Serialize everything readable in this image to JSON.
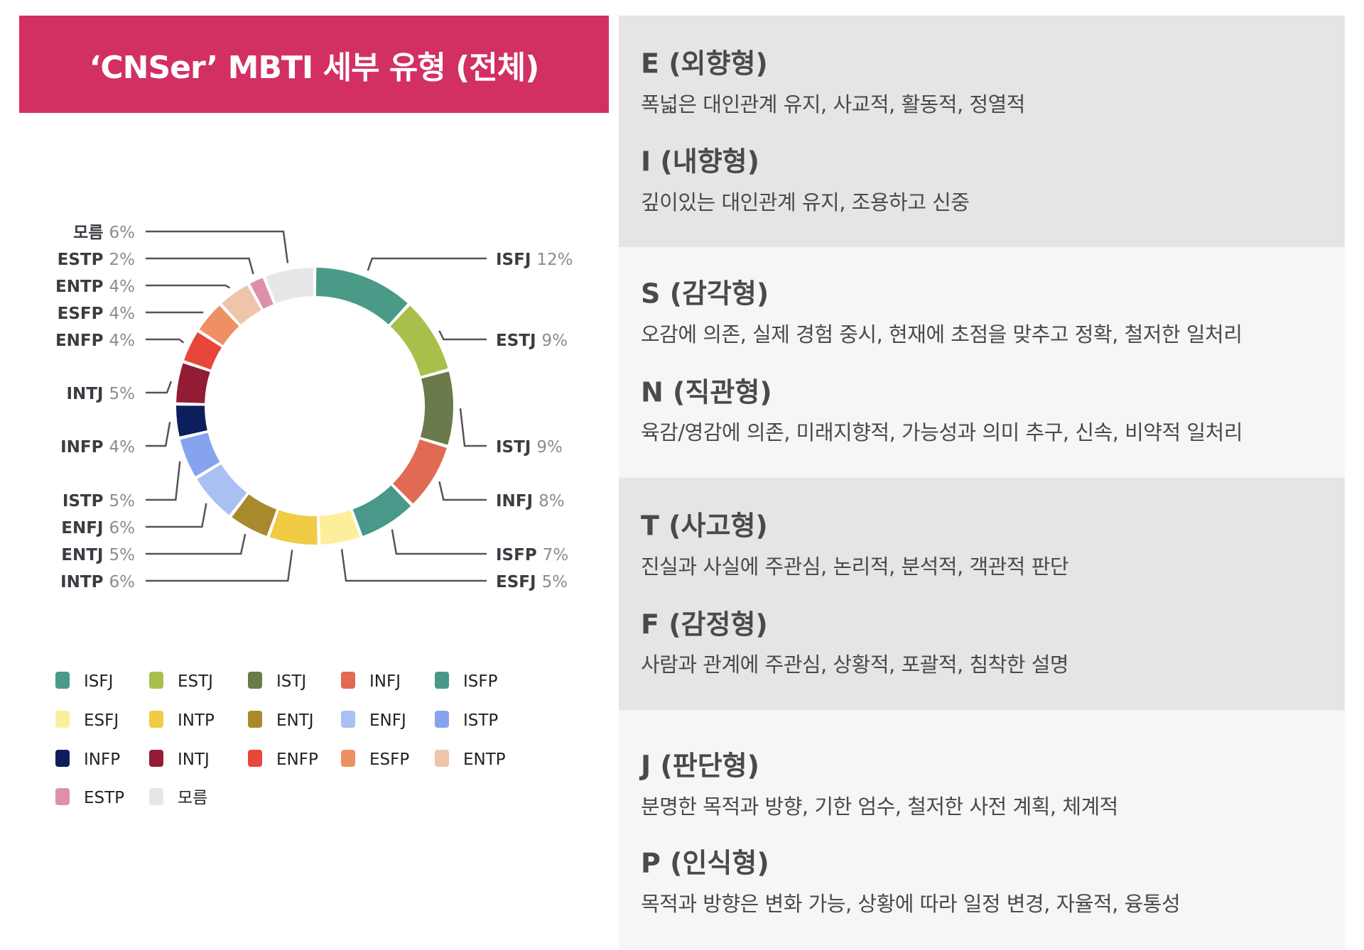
{
  "title": "‘CNSer’ MBTI 세부 유형 (전체)",
  "chart_data": {
    "type": "pie",
    "variant": "donut",
    "unit": "%",
    "legend_placement": "bottom",
    "slices": [
      {
        "label": "ISFJ",
        "value": 12,
        "color": "#4a9a88"
      },
      {
        "label": "ESTJ",
        "value": 9,
        "color": "#a8c04a"
      },
      {
        "label": "ISTJ",
        "value": 9,
        "color": "#6b7a4a"
      },
      {
        "label": "INFJ",
        "value": 8,
        "color": "#e06a52"
      },
      {
        "label": "ISFP",
        "value": 7,
        "color": "#48998a"
      },
      {
        "label": "ESFJ",
        "value": 5,
        "color": "#fbef9c"
      },
      {
        "label": "INTP",
        "value": 6,
        "color": "#efcc44"
      },
      {
        "label": "ENTJ",
        "value": 5,
        "color": "#a88a2c"
      },
      {
        "label": "ENFJ",
        "value": 6,
        "color": "#a8c0f2"
      },
      {
        "label": "ISTP",
        "value": 5,
        "color": "#86a4ee"
      },
      {
        "label": "INFP",
        "value": 4,
        "color": "#0c1e5c"
      },
      {
        "label": "INTJ",
        "value": 5,
        "color": "#921c34"
      },
      {
        "label": "ENFP",
        "value": 4,
        "color": "#e6473a"
      },
      {
        "label": "ESFP",
        "value": 4,
        "color": "#ee9064"
      },
      {
        "label": "ENTP",
        "value": 4,
        "color": "#eec4aa"
      },
      {
        "label": "ESTP",
        "value": 2,
        "color": "#de90aa"
      },
      {
        "label": "모름",
        "value": 6,
        "color": "#e6e7e9"
      }
    ],
    "legend_order": [
      "ISFJ",
      "ESTJ",
      "ISTJ",
      "INFJ",
      "ISFP",
      "ESFJ",
      "INTP",
      "ENTJ",
      "ENFJ",
      "ISTP",
      "INFP",
      "INTJ",
      "ENFP",
      "ESFP",
      "ENTP",
      "ESTP",
      "모름"
    ]
  },
  "descriptions": [
    {
      "heading": "E (외향형)",
      "text": "폭넓은 대인관계 유지, 사교적, 활동적, 정열적"
    },
    {
      "heading": "I (내향형)",
      "text": "깊이있는 대인관계 유지, 조용하고 신중"
    },
    {
      "heading": "S (감각형)",
      "text": "오감에 의존, 실제 경험 중시, 현재에 초점을 맞추고 정확, 철저한 일처리"
    },
    {
      "heading": "N (직관형)",
      "text": "육감/영감에 의존, 미래지향적, 가능성과 의미 추구, 신속, 비약적 일처리"
    },
    {
      "heading": "T (사고형)",
      "text": "진실과 사실에 주관심, 논리적, 분석적, 객관적 판단"
    },
    {
      "heading": "F (감정형)",
      "text": "사람과 관계에 주관심, 상황적, 포괄적, 침착한 설명"
    },
    {
      "heading": "J (판단형)",
      "text": "분명한 목적과 방향, 기한 엄수, 철저한 사전 계획, 체계적"
    },
    {
      "heading": "P (인식형)",
      "text": "목적과 방향은 변화 가능, 상황에 따라 일정 변경, 자율적, 융통성"
    }
  ]
}
